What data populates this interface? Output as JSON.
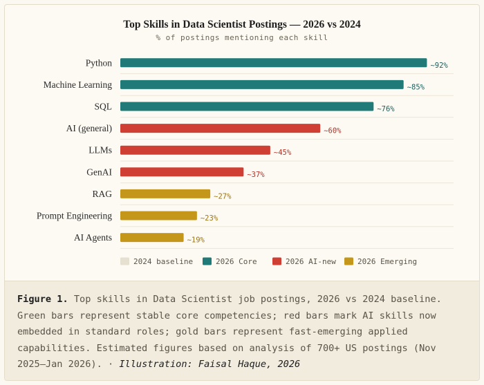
{
  "chart_data": {
    "type": "bar",
    "orientation": "horizontal",
    "title": "Top Skills in Data Scientist Postings — 2026 vs 2024",
    "subtitle": "% of postings mentioning each skill",
    "categories": [
      "Python",
      "Machine Learning",
      "SQL",
      "AI (general)",
      "LLMs",
      "GenAI",
      "RAG",
      "Prompt Engineering",
      "AI Agents"
    ],
    "values": [
      92,
      85,
      76,
      60,
      45,
      37,
      27,
      23,
      19
    ],
    "value_labels": [
      "~92%",
      "~85%",
      "~76%",
      "~60%",
      "~45%",
      "~37%",
      "~27%",
      "~23%",
      "~19%"
    ],
    "groups": [
      "2026 Core",
      "2026 Core",
      "2026 Core",
      "2026 AI-new",
      "2026 AI-new",
      "2026 AI-new",
      "2026 Emerging",
      "2026 Emerging",
      "2026 Emerging"
    ],
    "xlim": [
      0,
      100
    ],
    "grid": false,
    "legend_position": "bottom",
    "legend": [
      {
        "name": "2024 baseline",
        "color": "#e6e0d1"
      },
      {
        "name": "2026 Core",
        "color": "#1f7a78"
      },
      {
        "name": "2026 AI-new",
        "color": "#cf3f33"
      },
      {
        "name": "2026 Emerging",
        "color": "#c4971a"
      }
    ],
    "colors": {
      "core": "#1f7a78",
      "ai_new": "#cf3f33",
      "emerging": "#c4971a",
      "core_label": "#1e5f5d",
      "ai_new_label": "#b3342a",
      "emerging_label": "#9a7514"
    }
  },
  "caption": {
    "label": "Figure 1.",
    "text": "Top skills in Data Scientist job postings, 2026 vs 2024 baseline. Green bars represent stable core competencies; red bars mark AI skills now embedded in standard roles; gold bars represent fast-emerging applied capabilities. Estimated figures based on analysis of 700+ US postings (Nov 2025–Jan 2026).",
    "separator": " · ",
    "credit": "Illustration: Faisal Haque, 2026"
  }
}
